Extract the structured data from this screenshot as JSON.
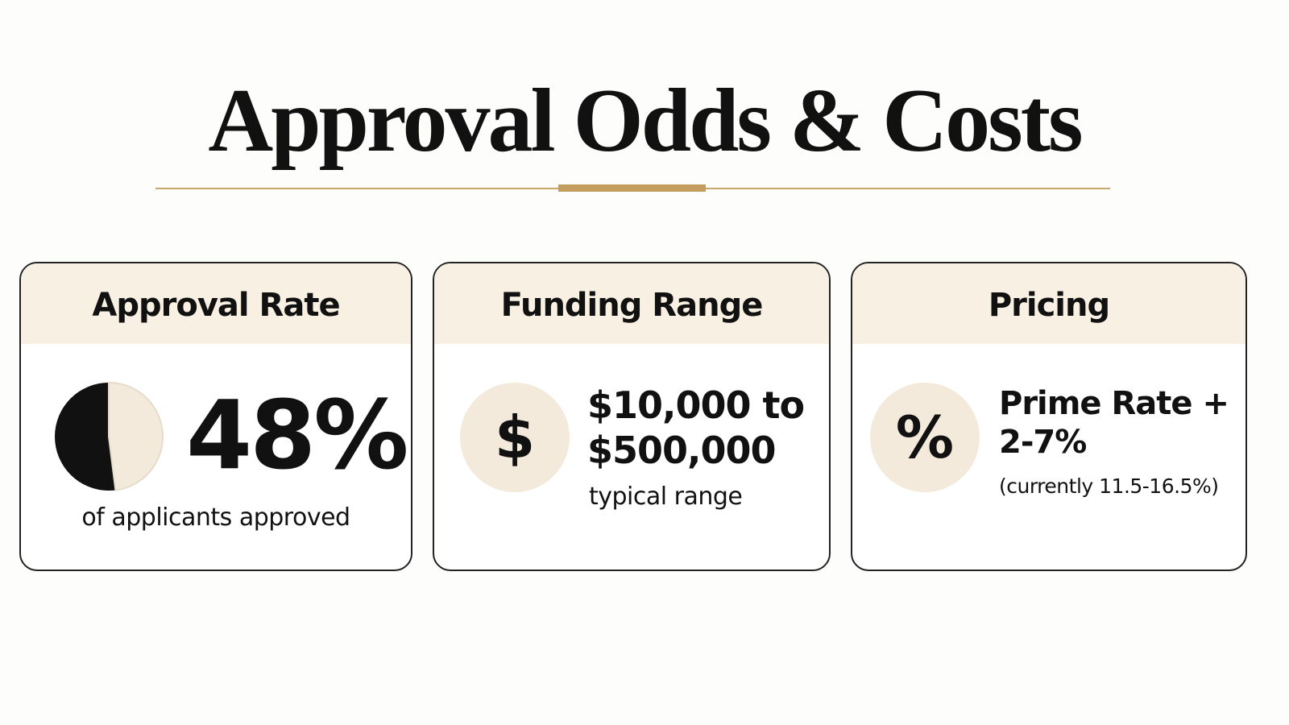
{
  "title": "Approval Odds & Costs",
  "cards": [
    {
      "heading": "Approval Rate",
      "stat": {
        "value": 48,
        "label": "48%"
      },
      "caption": "of applicants approved"
    },
    {
      "heading": "Funding Range",
      "icon": "$",
      "lines": [
        "$10,000 to",
        "$500,000"
      ],
      "caption": "typical range"
    },
    {
      "heading": "Pricing",
      "icon": "%",
      "lines": [
        "Prime Rate +",
        "2-7%"
      ],
      "caption": "(currently 11.5-16.5%)"
    }
  ]
}
